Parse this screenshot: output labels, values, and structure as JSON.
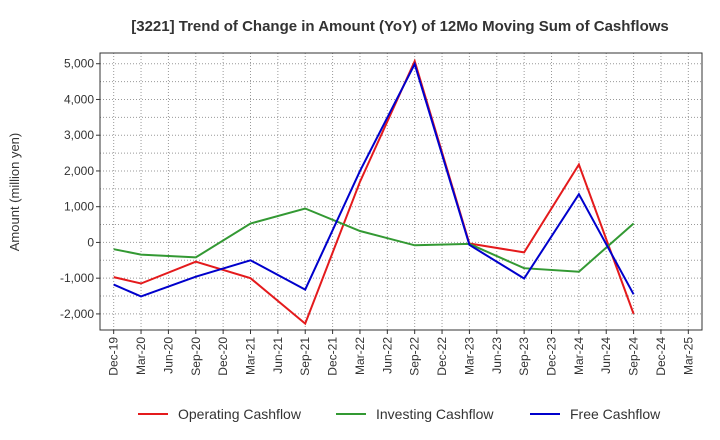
{
  "chart_data": {
    "type": "line",
    "title": "[3221]  Trend of Change in Amount (YoY) of 12Mo Moving Sum of Cashflows",
    "xlabel": "",
    "ylabel": "Amount (million yen)",
    "ylim": [
      -2450,
      5300
    ],
    "yticks": [
      5000,
      4000,
      3000,
      2000,
      1000,
      0,
      -1000,
      -2000
    ],
    "ytick_labels": [
      "5,000",
      "4,000",
      "3,000",
      "2,000",
      "1,000",
      "0",
      "-1,000",
      "-2,000"
    ],
    "categories": [
      "Dec-19",
      "Mar-20",
      "Jun-20",
      "Sep-20",
      "Dec-20",
      "Mar-21",
      "Jun-21",
      "Sep-21",
      "Dec-21",
      "Mar-22",
      "Jun-22",
      "Sep-22",
      "Dec-22",
      "Mar-23",
      "Jun-23",
      "Sep-23",
      "Dec-23",
      "Mar-24",
      "Jun-24",
      "Sep-24",
      "Dec-24",
      "Mar-25"
    ],
    "series": [
      {
        "name": "Operating Cashflow",
        "color": "#e41a1c",
        "values": [
          -970,
          -1150,
          null,
          -540,
          null,
          -1000,
          null,
          -2270,
          null,
          1700,
          null,
          5070,
          null,
          -30,
          null,
          -280,
          null,
          2180,
          null,
          -2000,
          null,
          null
        ]
      },
      {
        "name": "Investing Cashflow",
        "color": "#339933",
        "values": [
          -190,
          -340,
          null,
          -420,
          null,
          530,
          null,
          950,
          null,
          320,
          null,
          -80,
          null,
          -40,
          null,
          -720,
          null,
          -820,
          null,
          530,
          null,
          null
        ]
      },
      {
        "name": "Free Cashflow",
        "color": "#0000cc",
        "values": [
          -1180,
          -1510,
          null,
          -960,
          null,
          -500,
          null,
          -1320,
          null,
          2000,
          null,
          4990,
          null,
          -70,
          null,
          -1010,
          null,
          1350,
          null,
          -1450,
          null,
          null
        ]
      }
    ],
    "legend_position": "bottom",
    "grid": true
  }
}
